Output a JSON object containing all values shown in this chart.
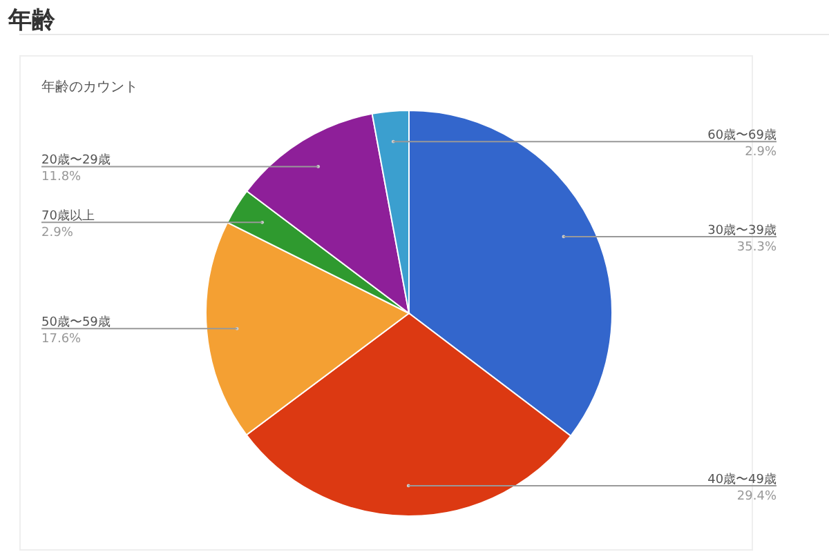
{
  "chart_data": {
    "type": "pie",
    "title": "年齢",
    "subtitle": "年齢のカウント",
    "categories": [
      "30歳〜39歳",
      "40歳〜49歳",
      "50歳〜59歳",
      "70歳以上",
      "20歳〜29歳",
      "60歳〜69歳"
    ],
    "values": [
      35.3,
      29.4,
      17.6,
      2.9,
      11.8,
      2.9
    ],
    "colors": [
      "#3366cc",
      "#dc3912",
      "#f4a033",
      "#2f9a2f",
      "#8e1f99",
      "#3b9fcf"
    ],
    "value_labels": [
      "35.3%",
      "29.4%",
      "17.6%",
      "2.9%",
      "11.8%",
      "2.9%"
    ]
  }
}
